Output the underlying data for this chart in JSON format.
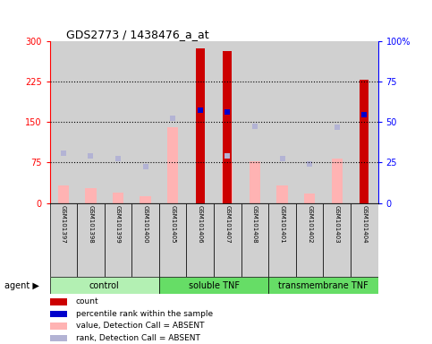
{
  "title": "GDS2773 / 1438476_a_at",
  "samples": [
    "GSM101397",
    "GSM101398",
    "GSM101399",
    "GSM101400",
    "GSM101405",
    "GSM101406",
    "GSM101407",
    "GSM101408",
    "GSM101401",
    "GSM101402",
    "GSM101403",
    "GSM101404"
  ],
  "group_configs": [
    {
      "start": 0,
      "end": 4,
      "label": "control",
      "color": "#b3f0b3"
    },
    {
      "start": 4,
      "end": 8,
      "label": "soluble TNF",
      "color": "#66dd66"
    },
    {
      "start": 8,
      "end": 12,
      "label": "transmembrane TNF",
      "color": "#66dd66"
    }
  ],
  "count_values": [
    null,
    null,
    null,
    null,
    null,
    287,
    282,
    null,
    null,
    null,
    null,
    228
  ],
  "percentile_rank": [
    null,
    null,
    null,
    null,
    null,
    172,
    168,
    null,
    null,
    null,
    null,
    163
  ],
  "absent_value": [
    32,
    27,
    20,
    13,
    140,
    null,
    75,
    78,
    32,
    18,
    82,
    null
  ],
  "absent_rank": [
    93,
    88,
    82,
    68,
    158,
    null,
    87,
    143,
    82,
    73,
    140,
    null
  ],
  "ylim_left": [
    0,
    300
  ],
  "ylim_right": [
    0,
    100
  ],
  "yticks_left": [
    0,
    75,
    150,
    225,
    300
  ],
  "yticks_right": [
    0,
    25,
    50,
    75,
    100
  ],
  "ytick_labels_left": [
    "0",
    "75",
    "150",
    "225",
    "300"
  ],
  "ytick_labels_right": [
    "0",
    "25",
    "50",
    "75",
    "100%"
  ],
  "hlines": [
    75,
    150,
    225
  ],
  "count_color": "#cc0000",
  "percentile_color": "#0000cc",
  "absent_value_color": "#ffb3b3",
  "absent_rank_color": "#b3b3d4",
  "count_bar_width": 0.32,
  "absent_bar_width": 0.4,
  "col_bg_color": "#d0d0d0",
  "plot_bg_color": "#ffffff",
  "legend_items": [
    {
      "color": "#cc0000",
      "label": "count"
    },
    {
      "color": "#0000cc",
      "label": "percentile rank within the sample"
    },
    {
      "color": "#ffb3b3",
      "label": "value, Detection Call = ABSENT"
    },
    {
      "color": "#b3b3d4",
      "label": "rank, Detection Call = ABSENT"
    }
  ]
}
